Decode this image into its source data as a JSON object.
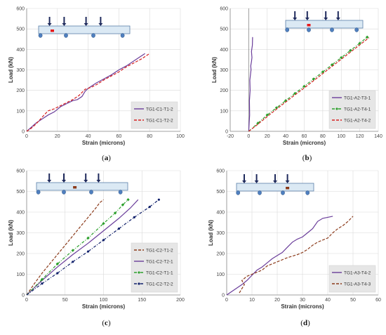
{
  "colors": {
    "purple": "#6a3d9a",
    "red": "#d62020",
    "green": "#2ca02c",
    "navy": "#10206b",
    "brown": "#8b3a1a",
    "beam_fill": "#dbe9f4",
    "beam_stroke": "#5a7fa8",
    "support": "#4f7fbf",
    "gauge_red": "#e8191a",
    "gauge_brown": "#8b3a1a",
    "load_arrow": "#1f2a5c",
    "legend_bg": "#e6e6e6"
  },
  "chart_data": [
    {
      "id": "a",
      "type": "line",
      "caption": "a",
      "xlabel": "Strain (microns)",
      "ylabel": "Load (kN)",
      "xlim": [
        0,
        100
      ],
      "ylim": [
        0,
        600
      ],
      "xticks": [
        0,
        20,
        40,
        60,
        80,
        100
      ],
      "yticks": [
        0,
        100,
        200,
        300,
        400,
        500,
        600
      ],
      "grid": true,
      "legend_position": "bottom-right",
      "gauge_color": "gauge_red",
      "series": [
        {
          "name": "TG1-C1-T1-2",
          "color": "purple",
          "dash": "solid",
          "marker": "none",
          "x": [
            0,
            3,
            6,
            10,
            14,
            18,
            22,
            26,
            30,
            33,
            36,
            38,
            40,
            45,
            50,
            55,
            60,
            65,
            70,
            74,
            77
          ],
          "y": [
            0,
            20,
            40,
            60,
            80,
            95,
            120,
            135,
            150,
            155,
            170,
            195,
            210,
            235,
            255,
            275,
            300,
            320,
            345,
            365,
            380
          ]
        },
        {
          "name": "TG1-C1-T2-2",
          "color": "red",
          "dash": "dashed",
          "marker": "none",
          "x": [
            0,
            3,
            6,
            9,
            12,
            14,
            18,
            22,
            26,
            30,
            34,
            38,
            42,
            46,
            50,
            55,
            60,
            65,
            70,
            75,
            80
          ],
          "y": [
            0,
            15,
            35,
            60,
            85,
            100,
            110,
            125,
            140,
            155,
            175,
            205,
            215,
            230,
            250,
            270,
            290,
            315,
            335,
            355,
            380
          ]
        }
      ]
    },
    {
      "id": "b",
      "type": "line",
      "caption": "b",
      "xlabel": "Strain (microns)",
      "ylabel": "Load (kN)",
      "xlim": [
        -20,
        140
      ],
      "ylim": [
        0,
        600
      ],
      "xticks": [
        -20,
        0,
        20,
        40,
        60,
        80,
        100,
        120,
        140
      ],
      "yticks": [
        0,
        100,
        200,
        300,
        400,
        500,
        600
      ],
      "grid": true,
      "legend_position": "bottom-right",
      "gauge_color": "gauge_red",
      "series": [
        {
          "name": "TG1-A2-T3-1",
          "color": "purple",
          "dash": "solid",
          "marker": "none",
          "x": [
            0,
            0.5,
            1,
            0.8,
            1.5,
            1.2,
            2,
            2.5,
            2.2,
            3,
            3.5,
            3,
            4,
            4.2
          ],
          "y": [
            0,
            40,
            80,
            150,
            200,
            250,
            280,
            300,
            320,
            340,
            360,
            390,
            420,
            460
          ]
        },
        {
          "name": "TG1-A2-T4-1",
          "color": "green",
          "dash": "dashdot",
          "marker": "diamond",
          "x": [
            0,
            10,
            20,
            30,
            40,
            50,
            60,
            70,
            80,
            90,
            100,
            110,
            120,
            128
          ],
          "y": [
            0,
            40,
            80,
            115,
            150,
            185,
            220,
            255,
            290,
            325,
            360,
            395,
            430,
            460
          ]
        },
        {
          "name": "TG1-A2-T4-2",
          "color": "red",
          "dash": "dashed",
          "marker": "none",
          "x": [
            0,
            10,
            20,
            30,
            40,
            50,
            60,
            70,
            80,
            90,
            100,
            110,
            120,
            130
          ],
          "y": [
            0,
            35,
            72,
            108,
            143,
            178,
            212,
            247,
            282,
            317,
            352,
            387,
            422,
            457
          ]
        }
      ]
    },
    {
      "id": "c",
      "type": "line",
      "caption": "c",
      "xlabel": "Strain (microns)",
      "ylabel": "Load (kN)",
      "xlim": [
        0,
        200
      ],
      "ylim": [
        0,
        600
      ],
      "xticks": [
        0,
        50,
        100,
        150,
        200
      ],
      "yticks": [
        0,
        100,
        200,
        300,
        400,
        500,
        600
      ],
      "grid": true,
      "legend_position": "bottom-right",
      "gauge_color": "gauge_brown",
      "series": [
        {
          "name": "TG1-C2-T1-2",
          "color": "brown",
          "dash": "dashed",
          "marker": "none",
          "x": [
            0,
            10,
            20,
            30,
            40,
            50,
            60,
            70,
            80,
            90,
            95,
            100
          ],
          "y": [
            0,
            55,
            105,
            150,
            195,
            240,
            285,
            330,
            375,
            420,
            445,
            460
          ]
        },
        {
          "name": "TG1-C2-T2-1",
          "color": "purple",
          "dash": "solid",
          "marker": "none",
          "x": [
            0,
            20,
            40,
            60,
            80,
            100,
            120,
            135,
            145
          ],
          "y": [
            0,
            70,
            135,
            195,
            250,
            310,
            370,
            420,
            460
          ]
        },
        {
          "name": "TG1-C2-T1-1",
          "color": "green",
          "dash": "dashdot",
          "marker": "diamond",
          "x": [
            0,
            20,
            40,
            60,
            80,
            100,
            115,
            125,
            132
          ],
          "y": [
            0,
            75,
            150,
            215,
            275,
            345,
            395,
            435,
            460
          ]
        },
        {
          "name": "TG1-C2-T2-2",
          "color": "navy",
          "dash": "dashdot",
          "marker": "dot",
          "x": [
            0,
            20,
            40,
            60,
            80,
            100,
            120,
            140,
            160,
            172
          ],
          "y": [
            0,
            55,
            105,
            160,
            210,
            265,
            320,
            375,
            425,
            460
          ]
        }
      ]
    },
    {
      "id": "d",
      "type": "line",
      "caption": "d",
      "xlabel": "Strain (microns)",
      "ylabel": "Load (kN)",
      "xlim": [
        0,
        60
      ],
      "ylim": [
        0,
        600
      ],
      "xticks": [
        0,
        10,
        20,
        30,
        40,
        50,
        60
      ],
      "yticks": [
        0,
        100,
        200,
        300,
        400,
        500,
        600
      ],
      "grid": true,
      "legend_position": "bottom-right",
      "gauge_color": "gauge_brown",
      "series": [
        {
          "name": "TG1-A3-T4-2",
          "color": "purple",
          "dash": "solid",
          "marker": "none",
          "x": [
            0,
            3,
            6,
            8,
            10,
            12,
            14,
            16,
            18,
            20,
            22,
            24,
            26,
            28,
            30,
            32,
            34,
            36,
            38,
            40,
            42
          ],
          "y": [
            0,
            25,
            50,
            70,
            95,
            120,
            135,
            155,
            175,
            190,
            205,
            230,
            255,
            270,
            280,
            300,
            320,
            355,
            370,
            375,
            380
          ]
        },
        {
          "name": "TG1-A3-T4-3",
          "color": "brown",
          "dash": "dashed",
          "marker": "none",
          "x": [
            5,
            6,
            7,
            6,
            8,
            10,
            14,
            16,
            20,
            24,
            28,
            30,
            32,
            34,
            36,
            38,
            40,
            42,
            44,
            46,
            48,
            50
          ],
          "y": [
            10,
            30,
            50,
            70,
            90,
            100,
            120,
            140,
            160,
            180,
            195,
            205,
            220,
            240,
            255,
            265,
            275,
            300,
            320,
            335,
            355,
            380
          ]
        }
      ]
    }
  ]
}
